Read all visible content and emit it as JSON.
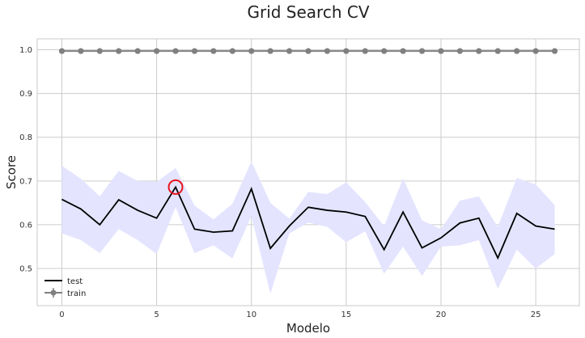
{
  "chart_data": {
    "type": "line",
    "title": "Grid Search CV",
    "xlabel": "Modelo",
    "ylabel": "Score",
    "xlim": [
      -1.3,
      27.3
    ],
    "ylim": [
      0.415,
      1.025
    ],
    "xticks": [
      0,
      5,
      10,
      15,
      20,
      25
    ],
    "yticks": [
      0.5,
      0.6,
      0.7,
      0.8,
      0.9,
      1.0
    ],
    "grid": true,
    "legend_position": "lower-left",
    "x": [
      0,
      1,
      2,
      3,
      4,
      5,
      6,
      7,
      8,
      9,
      10,
      11,
      12,
      13,
      14,
      15,
      16,
      17,
      18,
      19,
      20,
      21,
      22,
      23,
      24,
      25,
      26
    ],
    "series": [
      {
        "name": "test",
        "color": "#000000",
        "values": [
          0.658,
          0.636,
          0.6,
          0.657,
          0.633,
          0.615,
          0.686,
          0.59,
          0.583,
          0.586,
          0.682,
          0.546,
          0.597,
          0.64,
          0.633,
          0.629,
          0.619,
          0.543,
          0.629,
          0.547,
          0.57,
          0.604,
          0.615,
          0.524,
          0.626,
          0.597,
          0.59
        ],
        "band_upper": [
          0.735,
          0.705,
          0.665,
          0.723,
          0.7,
          0.698,
          0.73,
          0.644,
          0.612,
          0.648,
          0.745,
          0.65,
          0.614,
          0.675,
          0.67,
          0.697,
          0.652,
          0.597,
          0.706,
          0.61,
          0.59,
          0.655,
          0.665,
          0.595,
          0.707,
          0.692,
          0.645
        ],
        "band_lower": [
          0.58,
          0.565,
          0.535,
          0.59,
          0.565,
          0.533,
          0.64,
          0.535,
          0.553,
          0.523,
          0.62,
          0.442,
          0.58,
          0.605,
          0.595,
          0.56,
          0.585,
          0.488,
          0.55,
          0.483,
          0.55,
          0.553,
          0.565,
          0.453,
          0.543,
          0.5,
          0.533
        ],
        "band_color": "#e4e4ff"
      },
      {
        "name": "train",
        "color": "#808080",
        "marker": "circle",
        "values": [
          0.997,
          0.997,
          0.997,
          0.997,
          0.997,
          0.997,
          0.997,
          0.997,
          0.997,
          0.997,
          0.997,
          0.997,
          0.997,
          0.997,
          0.997,
          0.997,
          0.997,
          0.997,
          0.997,
          0.997,
          0.997,
          0.997,
          0.997,
          0.997,
          0.997,
          0.997,
          0.997
        ]
      }
    ],
    "highlight": {
      "x": 6,
      "y": 0.686,
      "color": "#e8141c"
    }
  }
}
